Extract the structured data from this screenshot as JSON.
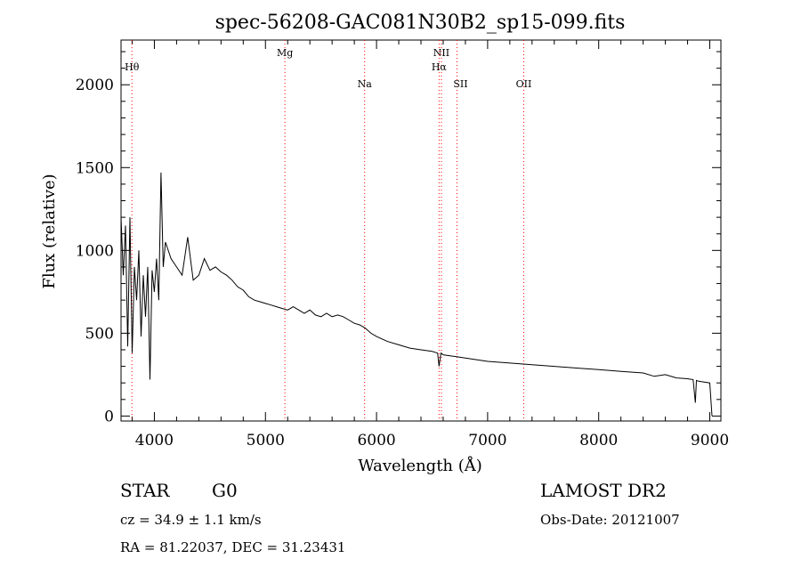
{
  "title": "spec-56208-GAC081N30B2_sp15-099.fits",
  "chart_data": {
    "type": "line",
    "title": "spec-56208-GAC081N30B2_sp15-099.fits",
    "xlabel": "Wavelength (Å)",
    "ylabel": "Flux (relative)",
    "xlim": [
      3700,
      9100
    ],
    "ylim": [
      -30,
      2270
    ],
    "x_ticks": [
      4000,
      5000,
      6000,
      7000,
      8000,
      9000
    ],
    "y_ticks": [
      0,
      500,
      1000,
      1500,
      2000
    ],
    "grid": false,
    "line_color": "#000000",
    "marker_color": "#ff0000",
    "spectral_lines": [
      {
        "name": "Hθ",
        "wavelength": 3798
      },
      {
        "name": "Mg",
        "wavelength": 5175
      },
      {
        "name": "Na",
        "wavelength": 5893
      },
      {
        "name": "NII",
        "wavelength": 6584
      },
      {
        "name": "Hα",
        "wavelength": 6563
      },
      {
        "name": "SII",
        "wavelength": 6724
      },
      {
        "name": "OII",
        "wavelength": 7325
      }
    ],
    "series": [
      {
        "x": [
          3700,
          3720,
          3740,
          3760,
          3780,
          3800,
          3820,
          3840,
          3860,
          3880,
          3900,
          3920,
          3940,
          3960,
          3980,
          4000,
          4020,
          4040,
          4060,
          4080,
          4100,
          4150,
          4200,
          4250,
          4300,
          4350,
          4400,
          4450,
          4500,
          4550,
          4600,
          4650,
          4700,
          4750,
          4800,
          4850,
          4900,
          4950,
          5000,
          5050,
          5100,
          5150,
          5200,
          5250,
          5300,
          5350,
          5400,
          5450,
          5500,
          5550,
          5600,
          5650,
          5700,
          5750,
          5800,
          5850,
          5900,
          5950,
          6000,
          6100,
          6200,
          6300,
          6400,
          6500,
          6550,
          6563,
          6580,
          6600,
          6700,
          6800,
          6900,
          7000,
          7200,
          7400,
          7600,
          7800,
          8000,
          8200,
          8400,
          8500,
          8600,
          8700,
          8800,
          8850,
          8870,
          8880,
          8900,
          8950,
          9000,
          9020
        ],
        "y": [
          1200,
          850,
          1150,
          420,
          1200,
          380,
          900,
          700,
          1000,
          480,
          850,
          600,
          900,
          220,
          880,
          750,
          950,
          700,
          1470,
          900,
          1050,
          950,
          900,
          850,
          1080,
          820,
          850,
          950,
          880,
          900,
          870,
          850,
          820,
          780,
          760,
          720,
          700,
          690,
          680,
          670,
          660,
          650,
          640,
          660,
          640,
          620,
          640,
          610,
          600,
          620,
          600,
          610,
          600,
          580,
          560,
          550,
          530,
          500,
          480,
          450,
          430,
          410,
          400,
          390,
          380,
          300,
          380,
          370,
          360,
          350,
          340,
          330,
          320,
          310,
          300,
          290,
          280,
          270,
          260,
          240,
          250,
          230,
          225,
          220,
          80,
          215,
          210,
          205,
          200,
          0
        ]
      }
    ]
  },
  "info": {
    "class": "STAR",
    "subclass": "G0",
    "survey": "LAMOST DR2",
    "cz": "cz = 34.9 ± 1.1 km/s",
    "obsdate": "Obs-Date: 20121007",
    "radec": "RA =  81.22037, DEC =  31.23431"
  }
}
